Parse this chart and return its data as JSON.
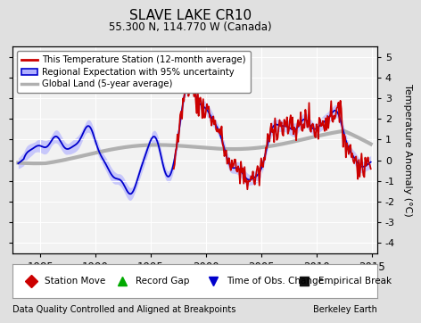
{
  "title": "SLAVE LAKE CR10",
  "subtitle": "55.300 N, 114.770 W (Canada)",
  "ylabel": "Temperature Anomaly (°C)",
  "xlabel_left": "Data Quality Controlled and Aligned at Breakpoints",
  "xlabel_right": "Berkeley Earth",
  "ylim": [
    -4.5,
    5.5
  ],
  "xlim": [
    1982.5,
    2015.5
  ],
  "yticks": [
    -4,
    -3,
    -2,
    -1,
    0,
    1,
    2,
    3,
    4,
    5
  ],
  "xticks": [
    1985,
    1990,
    1995,
    2000,
    2005,
    2010,
    2015
  ],
  "bg_color": "#e0e0e0",
  "plot_bg_color": "#f2f2f2",
  "grid_color": "#ffffff",
  "red_color": "#cc0000",
  "blue_color": "#0000cc",
  "blue_fill_color": "#b0b0ff",
  "gray_color": "#b0b0b0",
  "legend_entries": [
    "This Temperature Station (12-month average)",
    "Regional Expectation with 95% uncertainty",
    "Global Land (5-year average)"
  ],
  "bottom_legend": [
    {
      "label": "Station Move",
      "color": "#cc0000",
      "marker": "D"
    },
    {
      "label": "Record Gap",
      "color": "#00aa00",
      "marker": "^"
    },
    {
      "label": "Time of Obs. Change",
      "color": "#0000cc",
      "marker": "v"
    },
    {
      "label": "Empirical Break",
      "color": "#111111",
      "marker": "s"
    }
  ]
}
